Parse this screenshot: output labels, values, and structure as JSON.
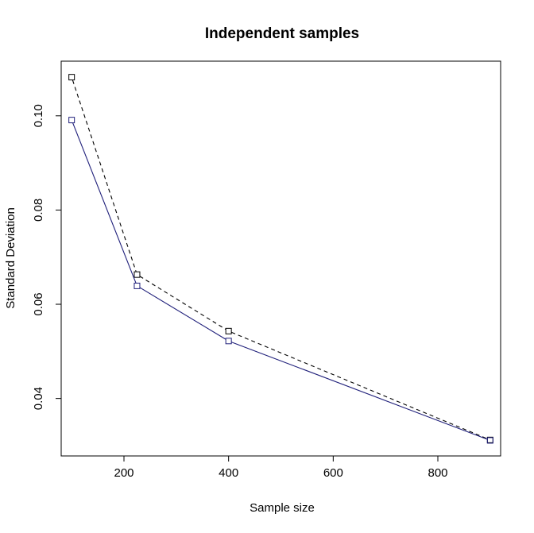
{
  "chart_data": {
    "type": "line",
    "title": "Independent samples",
    "xlabel": "Sample size",
    "ylabel": "Standard Deviation",
    "xlim": [
      80,
      920
    ],
    "ylim": [
      0.0278,
      0.1116
    ],
    "x_ticks": [
      200,
      400,
      600,
      800
    ],
    "y_ticks": [
      0.04,
      0.06,
      0.08,
      0.1
    ],
    "x_tick_labels": [
      "200",
      "400",
      "600",
      "800"
    ],
    "y_tick_labels": [
      "0.04",
      "0.06",
      "0.08",
      "0.10"
    ],
    "grid": false,
    "legend": null,
    "x": [
      100,
      225,
      400,
      900
    ],
    "series": [
      {
        "values": [
          0.1082,
          0.0663,
          0.0543,
          0.0312
        ],
        "color": "#000000",
        "line_style": "dashed",
        "marker": "square"
      },
      {
        "values": [
          0.0991,
          0.0639,
          0.0522,
          0.0311
        ],
        "color": "#1f1f7a",
        "line_style": "solid",
        "marker": "square"
      }
    ]
  }
}
